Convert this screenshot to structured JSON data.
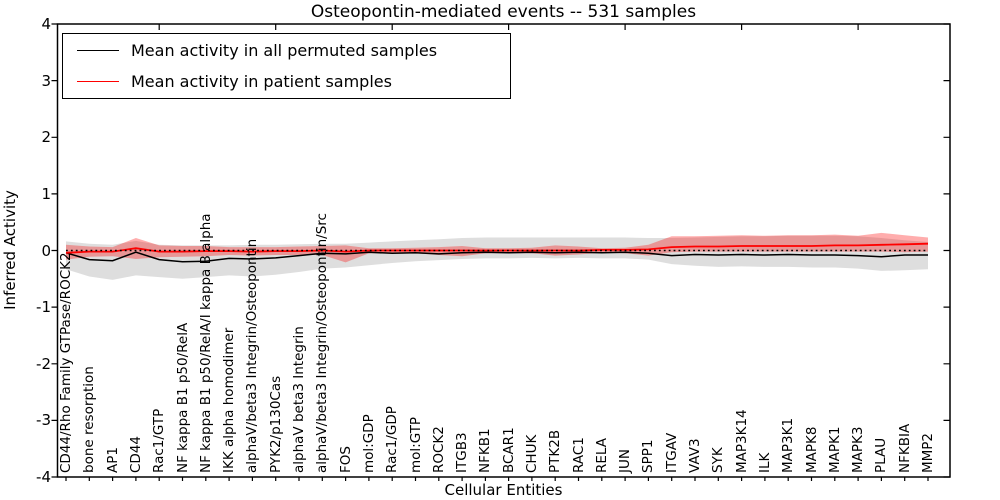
{
  "chart_data": {
    "type": "line",
    "title": "Osteopontin-mediated events -- 531 samples",
    "xlabel": "Cellular Entities",
    "ylabel": "Inferred Activity",
    "ylim": [
      -4,
      4
    ],
    "yticks": [
      4,
      3,
      2,
      1,
      0,
      -1,
      -2,
      -3,
      -4
    ],
    "x_major_ticks_every": 5,
    "zero_reference_line": true,
    "legend_position": "upper left",
    "grid": false,
    "categories": [
      "CD44/Rho Family GTPase/ROCK2",
      "bone resorption",
      "AP1",
      "CD44",
      "Rac1/GTP",
      "NF kappa B1 p50/RelA",
      "NF kappa B1 p50/RelA/I kappa B alpha",
      "IKK alpha homodimer",
      "alphaV/beta3 Integrin/Osteopontin",
      "PYK2/p130Cas",
      "alphaV beta3 Integrin",
      "alphaV/beta3 Integrin/Osteopontin/Src",
      "FOS",
      "mol:GDP",
      "Rac1/GDP",
      "mol:GTP",
      "ROCK2",
      "ITGB3",
      "NFKB1",
      "BCAR1",
      "CHUK",
      "PTK2B",
      "RAC1",
      "RELA",
      "JUN",
      "SPP1",
      "ITGAV",
      "VAV3",
      "SYK",
      "MAP3K14",
      "ILK",
      "MAP3K1",
      "MAPK8",
      "MAPK1",
      "MAPK3",
      "PLAU",
      "NFKBIA",
      "MMP2"
    ],
    "series": [
      {
        "name": "Mean activity in all permuted samples",
        "color": "#000000",
        "band_color": "rgba(0,0,0,0.13)",
        "values": [
          -0.04,
          -0.16,
          -0.18,
          -0.03,
          -0.16,
          -0.2,
          -0.19,
          -0.14,
          -0.15,
          -0.13,
          -0.09,
          -0.05,
          -0.06,
          -0.03,
          -0.05,
          -0.04,
          -0.06,
          -0.04,
          -0.03,
          -0.04,
          -0.03,
          -0.04,
          -0.03,
          -0.04,
          -0.03,
          -0.05,
          -0.09,
          -0.07,
          -0.08,
          -0.07,
          -0.08,
          -0.07,
          -0.08,
          -0.08,
          -0.09,
          -0.11,
          -0.08,
          -0.08
        ],
        "band_upper": [
          0.16,
          0.12,
          0.1,
          0.17,
          0.1,
          0.09,
          0.09,
          0.09,
          0.1,
          0.1,
          0.11,
          0.12,
          0.12,
          0.14,
          0.16,
          0.18,
          0.2,
          0.22,
          0.23,
          0.23,
          0.23,
          0.23,
          0.23,
          0.23,
          0.23,
          0.22,
          0.22,
          0.23,
          0.24,
          0.25,
          0.25,
          0.26,
          0.26,
          0.26,
          0.25,
          0.22,
          0.18,
          0.15
        ],
        "band_lower": [
          -0.33,
          -0.46,
          -0.52,
          -0.44,
          -0.47,
          -0.5,
          -0.47,
          -0.44,
          -0.46,
          -0.43,
          -0.38,
          -0.32,
          -0.3,
          -0.26,
          -0.22,
          -0.19,
          -0.17,
          -0.15,
          -0.14,
          -0.14,
          -0.13,
          -0.14,
          -0.13,
          -0.14,
          -0.14,
          -0.16,
          -0.24,
          -0.27,
          -0.29,
          -0.28,
          -0.29,
          -0.29,
          -0.3,
          -0.3,
          -0.32,
          -0.36,
          -0.35,
          -0.33
        ]
      },
      {
        "name": "Mean activity in patient samples",
        "color": "#ff0000",
        "band_color": "rgba(255,0,0,0.32)",
        "values": [
          -0.04,
          -0.02,
          -0.02,
          0.04,
          -0.02,
          -0.02,
          -0.01,
          -0.01,
          -0.02,
          -0.01,
          -0.01,
          0.0,
          -0.02,
          0.0,
          0.0,
          0.0,
          0.0,
          0.0,
          0.0,
          0.0,
          0.0,
          0.0,
          0.0,
          0.01,
          0.01,
          0.02,
          0.06,
          0.07,
          0.07,
          0.08,
          0.08,
          0.08,
          0.08,
          0.09,
          0.09,
          0.1,
          0.11,
          0.12
        ],
        "band_upper": [
          0.1,
          0.07,
          0.06,
          0.22,
          0.09,
          0.08,
          0.08,
          0.06,
          0.06,
          0.06,
          0.07,
          0.08,
          0.09,
          0.04,
          0.04,
          0.05,
          0.06,
          0.08,
          0.04,
          0.04,
          0.05,
          0.09,
          0.07,
          0.04,
          0.05,
          0.1,
          0.25,
          0.25,
          0.26,
          0.27,
          0.26,
          0.27,
          0.27,
          0.28,
          0.26,
          0.31,
          0.27,
          0.23
        ],
        "band_lower": [
          -0.16,
          -0.11,
          -0.1,
          -0.15,
          -0.12,
          -0.11,
          -0.1,
          -0.08,
          -0.09,
          -0.08,
          -0.08,
          -0.08,
          -0.21,
          -0.05,
          -0.05,
          -0.05,
          -0.08,
          -0.1,
          -0.05,
          -0.05,
          -0.05,
          -0.09,
          -0.07,
          -0.04,
          -0.05,
          -0.09,
          -0.03,
          -0.02,
          -0.02,
          -0.02,
          -0.02,
          -0.02,
          -0.02,
          -0.02,
          -0.02,
          -0.02,
          -0.03,
          -0.02
        ]
      }
    ]
  }
}
